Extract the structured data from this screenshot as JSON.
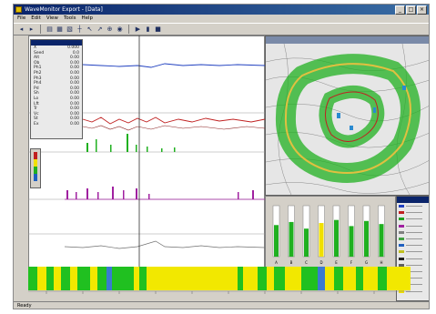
{
  "window": {
    "title": "WaveMonitor Export - [Data]",
    "controls": [
      "_",
      "□",
      "×"
    ]
  },
  "menu": [
    "File",
    "Edit",
    "View",
    "Tools",
    "Help"
  ],
  "toolbar": [
    "◂",
    "▸",
    "▤",
    "▦",
    "▧",
    "┼",
    "↖",
    "↗",
    "⊕",
    "◉",
    "▶",
    "▮",
    "■"
  ],
  "data_panel": {
    "rows": [
      [
        "X",
        "0.000"
      ],
      [
        "Seed",
        "0.0"
      ],
      [
        "Alt",
        "0.00"
      ],
      [
        "Ob",
        "0.00"
      ],
      [
        "Ph1",
        "0.00"
      ],
      [
        "Ph2",
        "0.00"
      ],
      [
        "Ph3",
        "0.00"
      ],
      [
        "Ph4",
        "0.00"
      ],
      [
        "Pd",
        "0.00"
      ],
      [
        "Sh",
        "0.00"
      ],
      [
        "Lo",
        "0.00"
      ],
      [
        "Lft",
        "0.00"
      ],
      [
        "Tr",
        "0.00"
      ],
      [
        "Vc",
        "0.00"
      ],
      [
        "St",
        "0.00"
      ],
      [
        "Ex",
        "0.00"
      ]
    ]
  },
  "gauges": {
    "labels": [
      "A",
      "B",
      "C",
      "D",
      "E",
      "F",
      "G",
      "H"
    ],
    "levels": [
      0.62,
      0.68,
      0.55,
      0.66,
      0.72,
      0.6,
      0.7,
      0.64
    ],
    "highlight_index": 3
  },
  "legend": {
    "items": [
      {
        "label": "Item",
        "color": "#2040c0"
      },
      {
        "label": "Item",
        "color": "#c02020"
      },
      {
        "label": "Item",
        "color": "#20a020"
      },
      {
        "label": "Item",
        "color": "#a020a0"
      },
      {
        "label": "Item",
        "color": "#808080"
      },
      {
        "label": "Item",
        "color": "#40a040"
      },
      {
        "label": "Item",
        "color": "#2060c0"
      },
      {
        "label": "Item",
        "color": "#c0c020"
      },
      {
        "label": "Item",
        "color": "#202020"
      },
      {
        "label": "Item",
        "color": "#606060"
      },
      {
        "label": "Item",
        "color": "#404040"
      },
      {
        "label": "Item",
        "color": "#303030"
      },
      {
        "label": "Item",
        "color": "#00a000"
      },
      {
        "label": "Item",
        "color": "#f0e000"
      }
    ]
  },
  "status": {
    "text": "Ready"
  }
}
